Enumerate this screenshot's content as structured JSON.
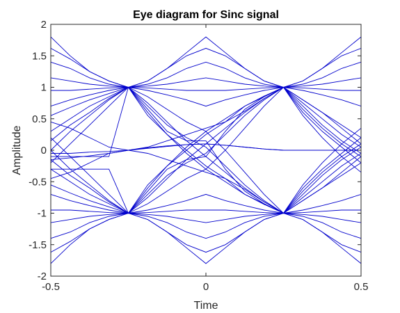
{
  "chart_data": {
    "type": "line",
    "title": "Eye diagram for Sinc signal",
    "xlabel": "Time",
    "ylabel": "Amplitude",
    "xlim": [
      -0.5,
      0.5
    ],
    "ylim": [
      -2,
      2
    ],
    "xticks": [
      "-0.5",
      "0",
      "0.5"
    ],
    "yticks": [
      "-2",
      "-1.5",
      "-1",
      "-0.5",
      "0",
      "0.5",
      "1",
      "1.5",
      "2"
    ],
    "grid": false,
    "legend": "none",
    "line_color": "#0000cc",
    "x": [
      -0.5,
      -0.4375,
      -0.375,
      -0.3125,
      -0.25,
      -0.1875,
      -0.125,
      -0.0625,
      0,
      0.0625,
      0.125,
      0.1875,
      0.25,
      0.3125,
      0.375,
      0.4375,
      0.5
    ],
    "series": [
      {
        "values": [
          1.8,
          1.5,
          1.25,
          1.1,
          1.0,
          1.1,
          1.3,
          1.55,
          1.8,
          1.55,
          1.3,
          1.1,
          1.0,
          1.1,
          1.3,
          1.55,
          1.8
        ]
      },
      {
        "values": [
          1.62,
          1.45,
          1.25,
          1.1,
          1.0,
          1.1,
          1.3,
          1.5,
          1.62,
          1.5,
          1.3,
          1.1,
          1.0,
          1.1,
          1.3,
          1.5,
          1.62
        ]
      },
      {
        "values": [
          1.4,
          1.3,
          1.15,
          1.05,
          1.0,
          1.05,
          1.15,
          1.3,
          1.4,
          1.3,
          1.15,
          1.05,
          1.0,
          1.05,
          1.15,
          1.3,
          1.4
        ]
      },
      {
        "values": [
          1.15,
          1.1,
          1.05,
          1.02,
          1.0,
          1.02,
          1.05,
          1.1,
          1.15,
          1.1,
          1.05,
          1.02,
          1.0,
          1.02,
          1.05,
          1.1,
          1.15
        ]
      },
      {
        "values": [
          0.95,
          0.95,
          0.97,
          0.99,
          1.0,
          0.99,
          0.97,
          0.95,
          0.95,
          0.95,
          0.97,
          0.99,
          1.0,
          0.99,
          0.97,
          0.95,
          0.95
        ]
      },
      {
        "values": [
          0.7,
          0.8,
          0.88,
          0.95,
          1.0,
          0.95,
          0.88,
          0.8,
          0.7,
          0.8,
          0.88,
          0.95,
          1.0,
          0.95,
          0.88,
          0.8,
          0.7
        ]
      },
      {
        "values": [
          -1.8,
          -1.5,
          -1.25,
          -1.1,
          -1.0,
          -1.1,
          -1.3,
          -1.55,
          -1.8,
          -1.55,
          -1.3,
          -1.1,
          -1.0,
          -1.1,
          -1.3,
          -1.55,
          -1.8
        ]
      },
      {
        "values": [
          -1.62,
          -1.45,
          -1.25,
          -1.1,
          -1.0,
          -1.1,
          -1.3,
          -1.5,
          -1.62,
          -1.5,
          -1.3,
          -1.1,
          -1.0,
          -1.1,
          -1.3,
          -1.5,
          -1.62
        ]
      },
      {
        "values": [
          -1.4,
          -1.3,
          -1.15,
          -1.05,
          -1.0,
          -1.05,
          -1.15,
          -1.3,
          -1.4,
          -1.3,
          -1.15,
          -1.05,
          -1.0,
          -1.05,
          -1.15,
          -1.3,
          -1.4
        ]
      },
      {
        "values": [
          -1.15,
          -1.1,
          -1.05,
          -1.02,
          -1.0,
          -1.02,
          -1.05,
          -1.1,
          -1.15,
          -1.1,
          -1.05,
          -1.02,
          -1.0,
          -1.02,
          -1.05,
          -1.1,
          -1.15
        ]
      },
      {
        "values": [
          -0.95,
          -0.95,
          -0.97,
          -0.99,
          -1.0,
          -0.99,
          -0.97,
          -0.95,
          -0.95,
          -0.95,
          -0.97,
          -0.99,
          -1.0,
          -0.99,
          -0.97,
          -0.95,
          -0.95
        ]
      },
      {
        "values": [
          -0.7,
          -0.8,
          -0.88,
          -0.95,
          -1.0,
          -0.95,
          -0.88,
          -0.8,
          -0.7,
          -0.8,
          -0.88,
          -0.95,
          -1.0,
          -0.95,
          -0.88,
          -0.8,
          -0.7
        ]
      },
      {
        "values": [
          0.0,
          0.3,
          0.55,
          0.8,
          1.0,
          0.75,
          0.45,
          0.15,
          -0.1,
          -0.35,
          -0.6,
          -0.82,
          -1.0,
          -0.7,
          -0.4,
          -0.15,
          0.05
        ]
      },
      {
        "values": [
          0.0,
          -0.3,
          -0.55,
          -0.8,
          -1.0,
          -0.75,
          -0.45,
          -0.15,
          0.1,
          0.35,
          0.6,
          0.82,
          1.0,
          0.7,
          0.4,
          0.15,
          -0.05
        ]
      },
      {
        "values": [
          0.3,
          0.5,
          0.7,
          0.85,
          1.0,
          0.7,
          0.4,
          0.2,
          0.05,
          -0.25,
          -0.55,
          -0.8,
          -1.0,
          -0.6,
          -0.3,
          -0.05,
          0.2
        ]
      },
      {
        "values": [
          -0.3,
          -0.5,
          -0.7,
          -0.85,
          -1.0,
          -0.7,
          -0.4,
          -0.2,
          -0.05,
          0.25,
          0.55,
          0.8,
          1.0,
          0.6,
          0.3,
          0.05,
          -0.2
        ]
      },
      {
        "values": [
          0.55,
          0.68,
          0.8,
          0.9,
          1.0,
          0.55,
          0.25,
          0.0,
          -0.25,
          -0.45,
          -0.7,
          -0.85,
          -1.0,
          -0.55,
          -0.2,
          0.1,
          0.35
        ]
      },
      {
        "values": [
          -0.55,
          -0.68,
          -0.8,
          -0.9,
          -1.0,
          -0.55,
          -0.25,
          0.0,
          0.25,
          0.45,
          0.7,
          0.85,
          1.0,
          0.55,
          0.2,
          -0.1,
          -0.35
        ]
      },
      {
        "values": [
          -0.2,
          0.1,
          0.4,
          0.7,
          1.0,
          0.85,
          0.65,
          0.45,
          0.3,
          0.0,
          -0.35,
          -0.7,
          -1.0,
          -0.75,
          -0.5,
          -0.25,
          -0.05
        ]
      },
      {
        "values": [
          0.2,
          -0.1,
          -0.4,
          -0.7,
          -1.0,
          -0.85,
          -0.65,
          -0.45,
          -0.3,
          0.0,
          0.35,
          0.7,
          1.0,
          0.75,
          0.5,
          0.25,
          0.05
        ]
      },
      {
        "values": [
          0.15,
          0.4,
          0.6,
          0.82,
          1.0,
          0.6,
          0.25,
          -0.05,
          -0.3,
          -0.5,
          -0.7,
          -0.86,
          -1.0,
          -0.65,
          -0.35,
          -0.1,
          0.1
        ]
      },
      {
        "values": [
          -0.15,
          -0.4,
          -0.6,
          -0.82,
          -1.0,
          -0.6,
          -0.25,
          0.05,
          0.3,
          0.5,
          0.7,
          0.86,
          1.0,
          0.65,
          0.35,
          0.1,
          -0.1
        ]
      },
      {
        "values": [
          -0.3,
          -0.3,
          -0.3,
          -0.3,
          -1.0,
          -0.65,
          -0.3,
          -0.15,
          -0.1,
          0.3,
          0.65,
          0.85,
          1.0,
          0.8,
          0.6,
          0.35,
          0.1
        ]
      },
      {
        "values": [
          -0.1,
          -0.1,
          -0.1,
          -0.1,
          1.0,
          0.65,
          0.3,
          0.15,
          0.15,
          -0.3,
          -0.65,
          -0.85,
          -1.0,
          -0.8,
          -0.6,
          -0.35,
          -0.1
        ]
      },
      {
        "values": [
          -0.05,
          -0.05,
          -0.03,
          -0.02,
          0.0,
          0.03,
          0.06,
          0.09,
          0.1,
          0.08,
          0.05,
          0.02,
          0.0,
          0.0,
          0.0,
          0.0,
          0.0
        ]
      },
      {
        "values": [
          -0.15,
          -0.12,
          -0.09,
          -0.05,
          0.0,
          0.04,
          0.07,
          0.09,
          0.1,
          0.08,
          0.05,
          0.02,
          0.0,
          0.0,
          0.0,
          0.0,
          0.0
        ]
      },
      {
        "values": [
          0.45,
          0.35,
          0.2,
          0.05,
          0.0,
          0.05,
          0.15,
          0.25,
          0.35,
          0.45,
          0.62,
          0.82,
          1.0,
          0.8,
          0.6,
          0.4,
          0.2
        ]
      },
      {
        "values": [
          -0.45,
          -0.35,
          -0.2,
          -0.05,
          0.0,
          -0.05,
          -0.15,
          -0.25,
          -0.35,
          -0.45,
          -0.62,
          -0.82,
          -1.0,
          -0.8,
          -0.6,
          -0.4,
          -0.2
        ]
      }
    ]
  }
}
